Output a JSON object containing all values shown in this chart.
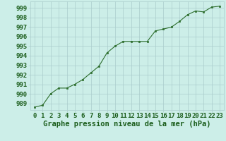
{
  "x": [
    0,
    1,
    2,
    3,
    4,
    5,
    6,
    7,
    8,
    9,
    10,
    11,
    12,
    13,
    14,
    15,
    16,
    17,
    18,
    19,
    20,
    21,
    22,
    23
  ],
  "y": [
    988.6,
    988.8,
    990.0,
    990.6,
    990.6,
    991.0,
    991.5,
    992.2,
    992.9,
    994.3,
    995.0,
    995.5,
    995.5,
    995.5,
    995.5,
    996.6,
    996.8,
    997.0,
    997.6,
    998.3,
    998.7,
    998.6,
    999.1,
    999.2
  ],
  "line_color": "#2d6e2d",
  "marker": "s",
  "marker_size": 2.0,
  "bg_color": "#cceee8",
  "grid_color": "#aacccc",
  "xlabel": "Graphe pression niveau de la mer (hPa)",
  "xlabel_fontsize": 7.5,
  "ylabel_ticks": [
    989,
    990,
    991,
    992,
    993,
    994,
    995,
    996,
    997,
    998,
    999
  ],
  "ylim": [
    988.3,
    999.7
  ],
  "xlim": [
    -0.5,
    23.5
  ],
  "tick_fontsize": 6.5,
  "tick_color": "#1a5c1a"
}
